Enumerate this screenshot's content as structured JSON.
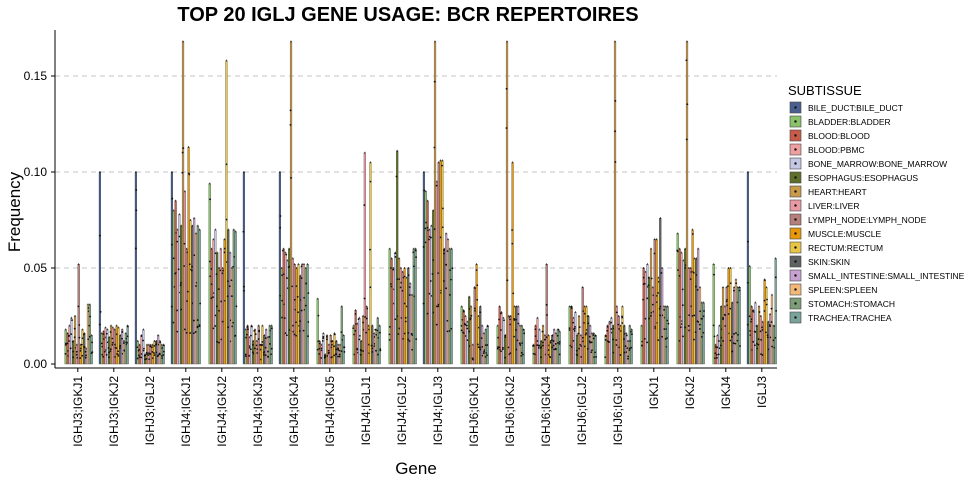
{
  "chart_data": {
    "type": "bar",
    "title": "TOP 20 IGLJ GENE USAGE: BCR REPERTOIRES",
    "xlabel": "Gene",
    "ylabel": "Frequency",
    "ylim": [
      0,
      0.17
    ],
    "yticks": [
      0.0,
      0.05,
      0.1,
      0.15
    ],
    "ytick_labels": [
      "0.00",
      "0.05",
      "0.10",
      "0.15"
    ],
    "grid": "horizontal dashed at major ticks",
    "legend": {
      "title": "SUBTISSUE",
      "placement": "right"
    },
    "categories": [
      "IGHJ3;IGKJ1",
      "IGHJ3;IGKJ2",
      "IGHJ3;IGLJ2",
      "IGHJ4;IGKJ1",
      "IGHJ4;IGKJ2",
      "IGHJ4;IGKJ3",
      "IGHJ4;IGKJ4",
      "IGHJ4;IGKJ5",
      "IGHJ4;IGLJ1",
      "IGHJ4;IGLJ2",
      "IGHJ4;IGLJ3",
      "IGHJ6;IGKJ1",
      "IGHJ6;IGKJ2",
      "IGHJ6;IGKJ4",
      "IGHJ6;IGLJ2",
      "IGHJ6;IGLJ3",
      "IGKJ1",
      "IGKJ2",
      "IGKJ4",
      "IGLJ3"
    ],
    "series": [
      {
        "name": "BILE_DUCT:BILE_DUCT",
        "color": "#4a5f8f",
        "values": [
          0,
          0.1,
          0.1,
          0.1,
          0,
          0.1,
          0.1,
          0,
          0,
          0,
          0.1,
          0,
          0,
          0,
          0,
          0,
          0,
          0,
          0,
          0.1
        ]
      },
      {
        "name": "BLADDER:BLADDER",
        "color": "#8ac26a",
        "values": [
          0.018,
          0.016,
          0.012,
          0.08,
          0.094,
          0.018,
          0.05,
          0.034,
          0.02,
          0.06,
          0.09,
          0.03,
          0.02,
          0.01,
          0.03,
          0.015,
          0.02,
          0.068,
          0.052,
          0.051
        ]
      },
      {
        "name": "BLOOD:BLOOD",
        "color": "#c75b4a",
        "values": [
          0.016,
          0.017,
          0.01,
          0.085,
          0.06,
          0.02,
          0.06,
          0.012,
          0.028,
          0.055,
          0.085,
          0.028,
          0.03,
          0.02,
          0.03,
          0.02,
          0.05,
          0.06,
          0.01,
          0.03
        ]
      },
      {
        "name": "BLOOD:PBMC",
        "color": "#eea0a0",
        "values": [
          0.02,
          0.019,
          0.015,
          0.07,
          0.065,
          0.014,
          0.058,
          0.01,
          0.021,
          0.05,
          0.07,
          0.025,
          0.027,
          0.024,
          0.024,
          0.022,
          0.048,
          0.058,
          0.015,
          0.028
        ]
      },
      {
        "name": "BONE_MARROW:BONE_MARROW",
        "color": "#c4c8e4",
        "values": [
          0.024,
          0.018,
          0.018,
          0.078,
          0.07,
          0.02,
          0.054,
          0.016,
          0.024,
          0.058,
          0.072,
          0.022,
          0.024,
          0.018,
          0.027,
          0.024,
          0.052,
          0.054,
          0.02,
          0.032
        ]
      },
      {
        "name": "ESOPHAGUS:ESOPHAGUS",
        "color": "#5e6f2b",
        "values": [
          0.012,
          0.014,
          0.005,
          0.072,
          0.058,
          0.012,
          0.06,
          0.005,
          0.012,
          0.111,
          0.08,
          0.035,
          0.015,
          0.012,
          0.015,
          0.02,
          0.045,
          0.06,
          0.03,
          0.02
        ]
      },
      {
        "name": "HEART:HEART",
        "color": "#c99a4a",
        "values": [
          0.025,
          0.02,
          0.01,
          0.168,
          0.05,
          0.018,
          0.168,
          0.015,
          0.025,
          0.055,
          0.168,
          0.03,
          0.168,
          0.02,
          0.025,
          0.168,
          0.06,
          0.168,
          0.04,
          0.03
        ]
      },
      {
        "name": "LIVER:LIVER",
        "color": "#e89aa2",
        "values": [
          0.01,
          0.019,
          0.01,
          0.09,
          0.06,
          0.012,
          0.055,
          0.01,
          0.11,
          0.05,
          0.095,
          0.01,
          0.025,
          0.015,
          0.015,
          0.03,
          0.04,
          0.05,
          0.03,
          0.025
        ]
      },
      {
        "name": "LYMPH_NODE:LYMPH_NODE",
        "color": "#b57f7c",
        "values": [
          0.052,
          0.018,
          0.01,
          0.06,
          0.05,
          0.02,
          0.052,
          0.015,
          0.03,
          0.048,
          0.105,
          0.04,
          0.025,
          0.052,
          0.04,
          0.025,
          0.065,
          0.05,
          0.04,
          0.022
        ]
      },
      {
        "name": "MUSCLE:MUSCLE",
        "color": "#e8960a",
        "values": [
          0.01,
          0.02,
          0.01,
          0.113,
          0.065,
          0.01,
          0.05,
          0.012,
          0.02,
          0.05,
          0.106,
          0.052,
          0.105,
          0.015,
          0.03,
          0.02,
          0.065,
          0.07,
          0.05,
          0.044
        ]
      },
      {
        "name": "RECTUM:RECTUM",
        "color": "#e8c547",
        "values": [
          0.018,
          0.019,
          0.012,
          0.075,
          0.158,
          0.02,
          0.052,
          0.016,
          0.105,
          0.045,
          0.106,
          0.025,
          0.03,
          0.012,
          0.03,
          0.03,
          0.045,
          0.055,
          0.05,
          0.04
        ]
      },
      {
        "name": "SKIN:SKIN",
        "color": "#5f6262",
        "values": [
          0.016,
          0.015,
          0.012,
          0.072,
          0.07,
          0.015,
          0.046,
          0.012,
          0.02,
          0.05,
          0.06,
          0.03,
          0.03,
          0.015,
          0.025,
          0.02,
          0.076,
          0.055,
          0.032,
          0.022
        ]
      },
      {
        "name": "SMALL_INTESTINE:SMALL_INTESTINE",
        "color": "#c7a1d0",
        "values": [
          0.008,
          0.018,
          0.015,
          0.076,
          0.058,
          0.018,
          0.052,
          0.01,
          0.016,
          0.042,
          0.068,
          0.02,
          0.03,
          0.018,
          0.02,
          0.016,
          0.05,
          0.06,
          0.04,
          0.026
        ]
      },
      {
        "name": "SPLEEN:SPLEEN",
        "color": "#f2b87a",
        "values": [
          0.031,
          0.012,
          0.012,
          0.068,
          0.05,
          0.014,
          0.052,
          0.01,
          0.018,
          0.036,
          0.065,
          0.016,
          0.02,
          0.016,
          0.016,
          0.012,
          0.03,
          0.04,
          0.044,
          0.036
        ]
      },
      {
        "name": "STOMACH:STOMACH",
        "color": "#7d9d78",
        "values": [
          0.031,
          0.016,
          0.01,
          0.072,
          0.07,
          0.02,
          0.05,
          0.03,
          0.024,
          0.06,
          0.06,
          0.018,
          0.02,
          0.018,
          0.016,
          0.02,
          0.03,
          0.032,
          0.04,
          0.02
        ]
      },
      {
        "name": "TRACHEA:TRACHEA",
        "color": "#7aa49a",
        "values": [
          0.015,
          0.02,
          0.01,
          0.07,
          0.069,
          0.02,
          0.052,
          0.015,
          0.02,
          0.06,
          0.06,
          0.02,
          0.018,
          0.017,
          0.015,
          0.018,
          0.03,
          0.032,
          0.04,
          0.055
        ]
      }
    ]
  }
}
